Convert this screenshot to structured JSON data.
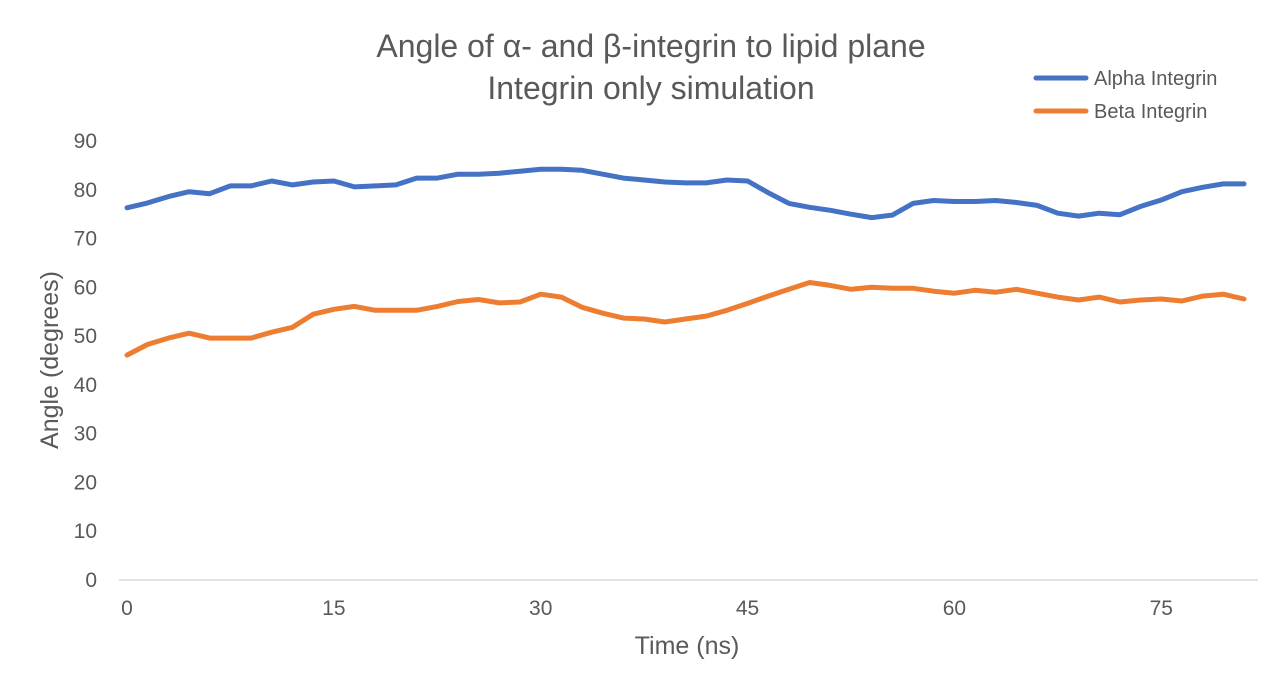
{
  "chart_data": {
    "type": "line",
    "title_lines": [
      "Angle of α- and β-integrin to lipid plane",
      "Integrin only simulation"
    ],
    "xlabel": "Time (ns)",
    "ylabel": "Angle (degrees)",
    "xlim": [
      0,
      81
    ],
    "ylim": [
      0,
      90
    ],
    "x_ticks": [
      0,
      15,
      30,
      45,
      60,
      75
    ],
    "y_ticks": [
      0,
      10,
      20,
      30,
      40,
      50,
      60,
      70,
      80,
      90
    ],
    "grid": false,
    "legend_position": "top-right",
    "series": [
      {
        "name": "Alpha Integrin",
        "color": "#4472C4",
        "points": [
          [
            0,
            76.3
          ],
          [
            1.5,
            77.3
          ],
          [
            3,
            78.6
          ],
          [
            4.5,
            79.6
          ],
          [
            6,
            79.2
          ],
          [
            7.5,
            80.8
          ],
          [
            9,
            80.8
          ],
          [
            10.5,
            81.8
          ],
          [
            12,
            81.0
          ],
          [
            13.5,
            81.6
          ],
          [
            15,
            81.8
          ],
          [
            16.5,
            80.6
          ],
          [
            18,
            80.8
          ],
          [
            19.5,
            81.0
          ],
          [
            21,
            82.4
          ],
          [
            22.5,
            82.4
          ],
          [
            24,
            83.2
          ],
          [
            25.5,
            83.2
          ],
          [
            27,
            83.4
          ],
          [
            28.5,
            83.8
          ],
          [
            30,
            84.2
          ],
          [
            31.5,
            84.2
          ],
          [
            33,
            84.0
          ],
          [
            34.5,
            83.2
          ],
          [
            36,
            82.4
          ],
          [
            37.5,
            82.0
          ],
          [
            39,
            81.6
          ],
          [
            40.5,
            81.4
          ],
          [
            42,
            81.4
          ],
          [
            43.5,
            82.0
          ],
          [
            45,
            81.8
          ],
          [
            46.5,
            79.4
          ],
          [
            48,
            77.2
          ],
          [
            49.5,
            76.4
          ],
          [
            51,
            75.8
          ],
          [
            52.5,
            75.0
          ],
          [
            54,
            74.3
          ],
          [
            55.5,
            74.8
          ],
          [
            57,
            77.2
          ],
          [
            58.5,
            77.8
          ],
          [
            60,
            77.6
          ],
          [
            61.5,
            77.6
          ],
          [
            63,
            77.8
          ],
          [
            64.5,
            77.4
          ],
          [
            66,
            76.8
          ],
          [
            67.5,
            75.2
          ],
          [
            69,
            74.6
          ],
          [
            70.5,
            75.2
          ],
          [
            72,
            74.9
          ],
          [
            73.5,
            76.6
          ],
          [
            75,
            77.9
          ],
          [
            76.5,
            79.6
          ],
          [
            78,
            80.5
          ],
          [
            79.5,
            81.2
          ],
          [
            81,
            81.2
          ]
        ]
      },
      {
        "name": "Beta Integrin",
        "color": "#ED7D31",
        "points": [
          [
            0,
            46.1
          ],
          [
            1.5,
            48.3
          ],
          [
            3,
            49.6
          ],
          [
            4.5,
            50.6
          ],
          [
            6,
            49.6
          ],
          [
            7.5,
            49.6
          ],
          [
            9,
            49.6
          ],
          [
            10.5,
            50.8
          ],
          [
            12,
            51.8
          ],
          [
            13.5,
            54.5
          ],
          [
            15,
            55.5
          ],
          [
            16.5,
            56.1
          ],
          [
            18,
            55.3
          ],
          [
            19.5,
            55.3
          ],
          [
            21,
            55.3
          ],
          [
            22.5,
            56.1
          ],
          [
            24,
            57.1
          ],
          [
            25.5,
            57.5
          ],
          [
            27,
            56.8
          ],
          [
            28.5,
            57.0
          ],
          [
            30,
            58.6
          ],
          [
            31.5,
            58.0
          ],
          [
            33,
            55.9
          ],
          [
            34.5,
            54.7
          ],
          [
            36,
            53.7
          ],
          [
            37.5,
            53.5
          ],
          [
            39,
            52.9
          ],
          [
            40.5,
            53.5
          ],
          [
            42,
            54.1
          ],
          [
            43.5,
            55.3
          ],
          [
            45,
            56.7
          ],
          [
            46.5,
            58.2
          ],
          [
            48,
            59.6
          ],
          [
            49.5,
            61.0
          ],
          [
            51,
            60.4
          ],
          [
            52.5,
            59.6
          ],
          [
            54,
            60.0
          ],
          [
            55.5,
            59.8
          ],
          [
            57,
            59.8
          ],
          [
            58.5,
            59.2
          ],
          [
            60,
            58.8
          ],
          [
            61.5,
            59.4
          ],
          [
            63,
            59.0
          ],
          [
            64.5,
            59.6
          ],
          [
            66,
            58.8
          ],
          [
            67.5,
            58.0
          ],
          [
            69,
            57.4
          ],
          [
            70.5,
            58.0
          ],
          [
            72,
            57.0
          ],
          [
            73.5,
            57.4
          ],
          [
            75,
            57.6
          ],
          [
            76.5,
            57.2
          ],
          [
            78,
            58.2
          ],
          [
            79.5,
            58.6
          ],
          [
            81,
            57.6
          ]
        ]
      }
    ]
  }
}
